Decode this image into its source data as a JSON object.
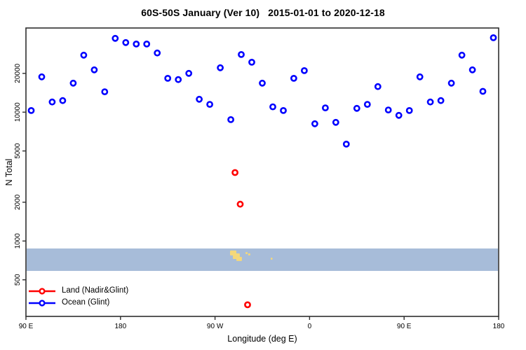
{
  "chart_data": {
    "type": "scatter",
    "title": "60S-50S January (Ver 10)   2015-01-01 to 2020-12-18",
    "xlabel": "Longitude (deg E)",
    "ylabel": "N Total",
    "x_axis": {
      "min": 90,
      "max": 540,
      "ticks": [
        {
          "lon": 90,
          "label": "90 E"
        },
        {
          "lon": 180,
          "label": "180"
        },
        {
          "lon": 270,
          "label": "90 W"
        },
        {
          "lon": 360,
          "label": "0"
        },
        {
          "lon": 450,
          "label": "90 E"
        },
        {
          "lon": 540,
          "label": "180"
        }
      ]
    },
    "y_axis": {
      "scale": "log",
      "min": 260,
      "max": 45000,
      "ticks": [
        500,
        1000,
        2000,
        5000,
        10000,
        20000
      ]
    },
    "series": [
      {
        "name": "Land (Nadir&Glint)",
        "color": "#ff0000",
        "lons": [
          289,
          294,
          301
        ],
        "values": [
          3400,
          1930,
          320
        ]
      },
      {
        "name": "Ocean (Glint)",
        "color": "#0000ff",
        "lons": [
          95,
          105,
          115,
          125,
          135,
          145,
          155,
          165,
          175,
          185,
          195,
          205,
          215,
          225,
          235,
          245,
          255,
          265,
          275,
          285,
          295,
          305,
          315,
          325,
          335,
          345,
          355,
          365,
          375,
          385,
          395,
          405,
          415,
          425,
          435,
          445,
          455,
          465,
          475,
          485,
          495,
          505,
          515,
          525,
          535
        ],
        "values": [
          10300,
          18800,
          12000,
          12300,
          16800,
          27700,
          21300,
          14400,
          37400,
          34700,
          33800,
          33800,
          28800,
          18300,
          17900,
          20000,
          12600,
          11500,
          22100,
          8750,
          28000,
          24400,
          16800,
          11000,
          10300,
          18300,
          21000,
          8130,
          10800,
          8330,
          5650,
          10700,
          11500,
          15800,
          10400,
          9440,
          10300,
          18800,
          12000,
          12300,
          16800,
          27700,
          21300,
          14500,
          37800
        ]
      }
    ],
    "map_strip": {
      "description": "60S-50S latitude band map",
      "ocean_color": "#a7bcd9",
      "land_color": "#f5d87b",
      "top_value": 875,
      "bottom_value": 586,
      "land_patches": [
        {
          "lon0": 284.3,
          "lon1": 290.3,
          "t0": 0.09,
          "t1": 0.31
        },
        {
          "lon0": 287.0,
          "lon1": 293.6,
          "t0": 0.22,
          "t1": 0.47
        },
        {
          "lon0": 290.3,
          "lon1": 295.6,
          "t0": 0.375,
          "t1": 0.56
        },
        {
          "lon0": 299.0,
          "lon1": 301.0,
          "t0": 0.16,
          "t1": 0.25
        },
        {
          "lon0": 301.5,
          "lon1": 303.6,
          "t0": 0.22,
          "t1": 0.31
        },
        {
          "lon0": 323.0,
          "lon1": 324.7,
          "t0": 0.41,
          "t1": 0.5
        }
      ]
    },
    "frame_color": "#2e2e2e"
  }
}
